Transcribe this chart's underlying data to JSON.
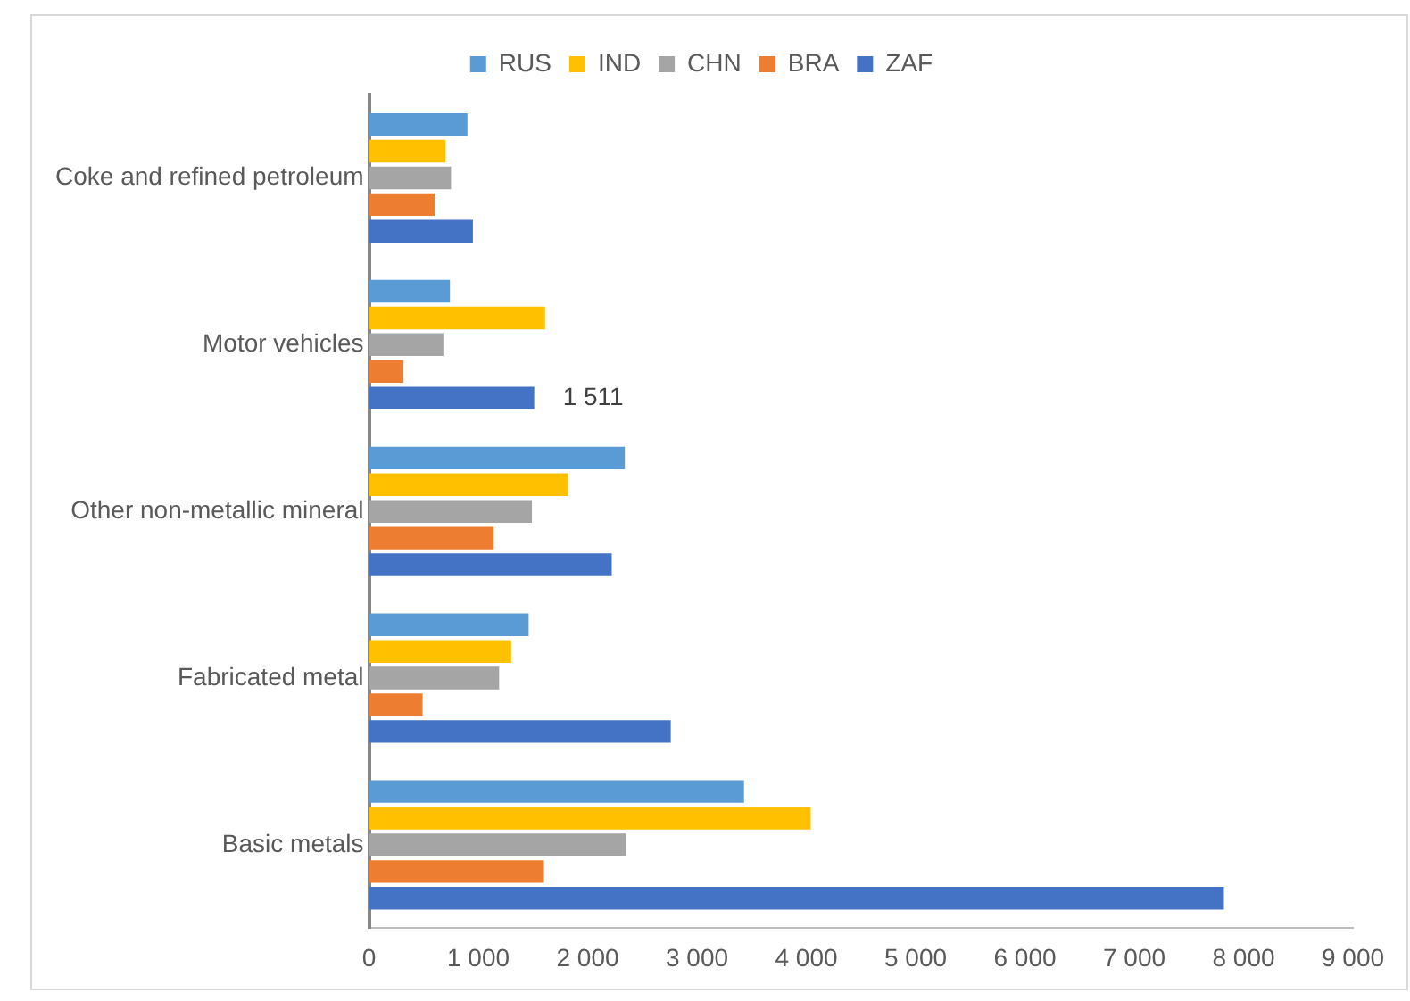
{
  "chart_data": {
    "type": "bar",
    "orientation": "horizontal",
    "legend": "top",
    "grid": false,
    "categories": [
      "Coke and refined petroleum",
      "Motor vehicles",
      "Other non-metallic mineral",
      "Fabricated metal",
      "Basic metals"
    ],
    "series": [
      {
        "name": "RUS",
        "color": "#5b9bd5",
        "values": [
          900,
          740,
          2340,
          1460,
          3430
        ]
      },
      {
        "name": "IND",
        "color": "#ffc000",
        "values": [
          700,
          1610,
          1820,
          1300,
          4040
        ]
      },
      {
        "name": "CHN",
        "color": "#a5a5a5",
        "values": [
          750,
          680,
          1490,
          1190,
          2350
        ]
      },
      {
        "name": "BRA",
        "color": "#ed7d31",
        "values": [
          600,
          315,
          1140,
          490,
          1600
        ]
      },
      {
        "name": "ZAF",
        "color": "#4472c4",
        "values": [
          950,
          1511,
          2220,
          2760,
          7820
        ],
        "value_labels": [
          null,
          "1 511",
          null,
          null,
          null
        ]
      }
    ],
    "xlim": [
      0,
      9000
    ],
    "xticks": [
      0,
      {
        "value": 1000,
        "label": "1 000"
      },
      {
        "value": 2000,
        "label": "2 000"
      },
      {
        "value": 3000,
        "label": "3 000"
      },
      {
        "value": 4000,
        "label": "4 000"
      },
      {
        "value": 5000,
        "label": "5 000"
      },
      {
        "value": 6000,
        "label": "6 000"
      },
      {
        "value": 7000,
        "label": "7 000"
      },
      {
        "value": 8000,
        "label": "8 000"
      },
      {
        "value": 9000,
        "label": "9 000"
      }
    ]
  }
}
